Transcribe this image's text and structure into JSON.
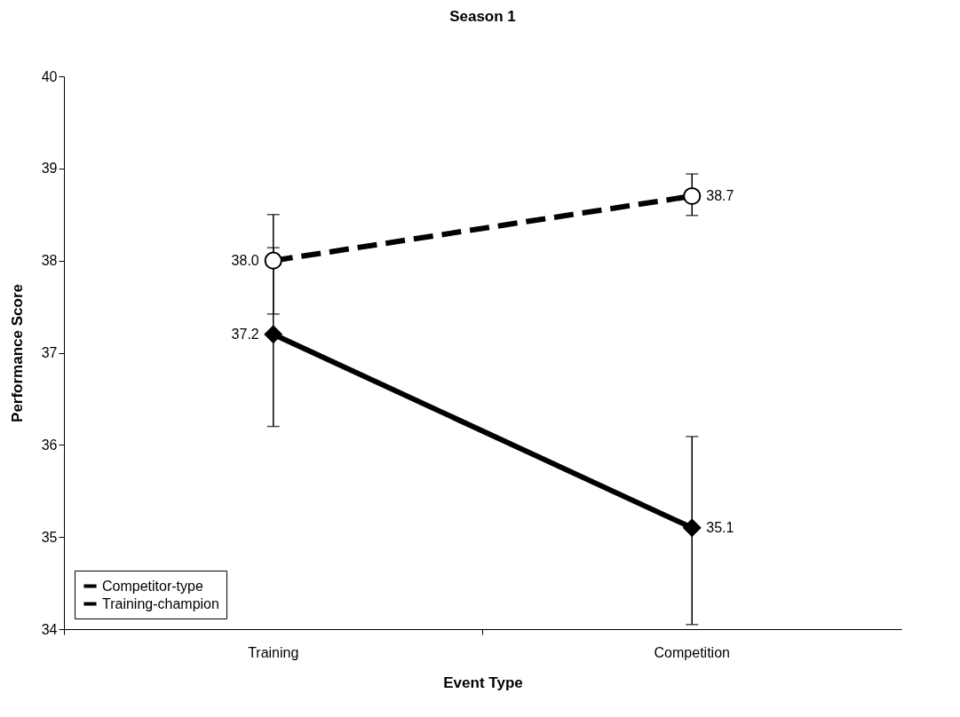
{
  "chart_data": {
    "type": "line",
    "title": "Season 1",
    "xlabel": "Event Type",
    "ylabel": "Performance Score",
    "categories": [
      "Training",
      "Competition"
    ],
    "series": [
      {
        "name": "Competitor-type",
        "color": "#000000",
        "values": [
          38.0,
          38.7
        ],
        "value_labels": [
          "38.0",
          "38.7"
        ],
        "errors": [
          [
            37.42,
            38.5
          ],
          [
            38.49,
            38.94
          ]
        ],
        "marker": "circle",
        "line_style": "dashed"
      },
      {
        "name": "Training-champion",
        "color": "#000000",
        "values": [
          37.2,
          35.1
        ],
        "value_labels": [
          "37.2",
          "35.1"
        ],
        "errors": [
          [
            36.2,
            38.14
          ],
          [
            34.05,
            36.09
          ]
        ],
        "marker": "diamond",
        "line_style": "solid"
      }
    ],
    "ylim": [
      34,
      40
    ],
    "yticks": [
      34,
      35,
      36,
      37,
      38,
      39,
      40
    ],
    "grid": false,
    "legend": "bottom left"
  }
}
